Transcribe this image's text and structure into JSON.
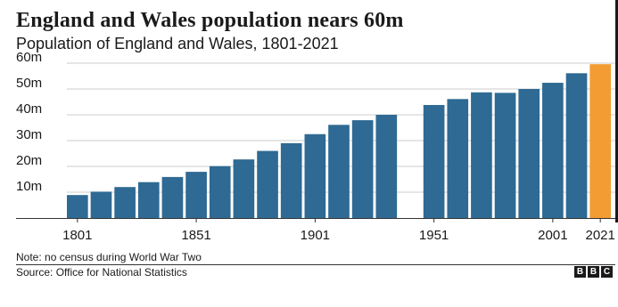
{
  "header": {
    "title": "England and Wales population nears 60m",
    "subtitle": "Population of England and Wales, 1801-2021"
  },
  "footer": {
    "note": "Note: no census during World War Two",
    "source": "Source: Office for National Statistics",
    "logo": [
      "B",
      "B",
      "C"
    ]
  },
  "colors": {
    "bar": "#2e6a93",
    "highlight": "#f39c33",
    "grid": "#cccccc",
    "text": "#1a1a1a"
  },
  "chart_data": {
    "type": "bar",
    "title": "England and Wales population nears 60m",
    "subtitle": "Population of England and Wales, 1801-2021",
    "ylim": [
      0,
      60
    ],
    "yticks": [
      {
        "value": 10,
        "label": "10m"
      },
      {
        "value": 20,
        "label": "20m"
      },
      {
        "value": 30,
        "label": "30m"
      },
      {
        "value": 40,
        "label": "40m"
      },
      {
        "value": 50,
        "label": "50m"
      },
      {
        "value": 60,
        "label": "60m"
      }
    ],
    "xticks": [
      "1801",
      "1851",
      "1901",
      "1951",
      "2001",
      "2021"
    ],
    "grid": true,
    "categories": [
      "1801",
      "1811",
      "1821",
      "1831",
      "1841",
      "1851",
      "1861",
      "1871",
      "1881",
      "1891",
      "1901",
      "1911",
      "1921",
      "1931",
      "1941",
      "1951",
      "1961",
      "1971",
      "1981",
      "1991",
      "2001",
      "2011",
      "2021"
    ],
    "values": [
      8.9,
      10.2,
      12.0,
      13.9,
      15.9,
      17.9,
      20.1,
      22.7,
      26.0,
      29.0,
      32.5,
      36.1,
      37.9,
      40.0,
      null,
      43.8,
      46.1,
      48.7,
      48.5,
      50.0,
      52.4,
      56.1,
      59.6
    ],
    "highlight_category": "2021"
  }
}
